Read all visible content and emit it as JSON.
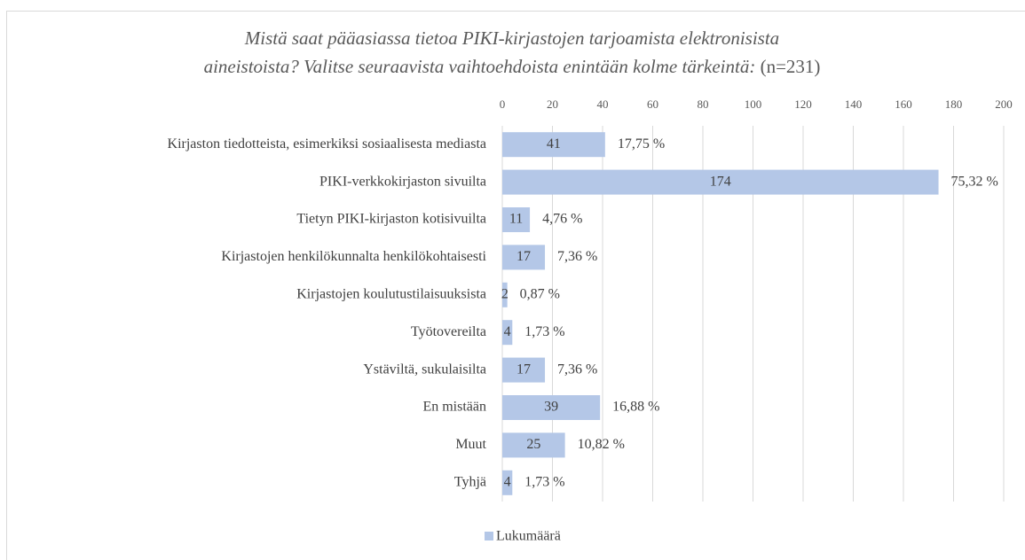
{
  "chart_data": {
    "type": "bar",
    "orientation": "horizontal",
    "title_lines": [
      "Mistä saat pääasiassa tietoa PIKI-kirjastojen tarjoamista elektronisista",
      "aineistoista? Valitse seuraavista vaihtoehdoista enintään kolme tärkeintä:"
    ],
    "sample_size_label": "(n=231)",
    "categories": [
      "Kirjaston tiedotteista, esimerkiksi sosiaalisesta mediasta",
      "PIKI-verkkokirjaston sivuilta",
      "Tietyn PIKI-kirjaston kotisivuilta",
      "Kirjastojen henkilökunnalta henkilökohtaisesti",
      "Kirjastojen koulutustilaisuuksista",
      "Työtovereilta",
      "Ystäviltä, sukulaisilta",
      "En mistään",
      "Muut",
      "Tyhjä"
    ],
    "series": [
      {
        "name": "Lukumäärä",
        "color": "#b4c7e7",
        "values": [
          41,
          174,
          11,
          17,
          2,
          4,
          17,
          39,
          25,
          4
        ],
        "percentages": [
          17.75,
          75.32,
          4.76,
          7.36,
          0.87,
          1.73,
          7.36,
          16.88,
          10.82,
          1.73
        ],
        "percentage_labels": [
          "17,75 %",
          "75,32 %",
          "4,76 %",
          "7,36 %",
          "0,87 %",
          "1,73 %",
          "7,36 %",
          "16,88 %",
          "10,82 %",
          "1,73 %"
        ]
      }
    ],
    "xlim": [
      0,
      200
    ],
    "xticks": [
      0,
      20,
      40,
      60,
      80,
      100,
      120,
      140,
      160,
      180,
      200
    ],
    "grid": true,
    "legend": "bottom"
  }
}
